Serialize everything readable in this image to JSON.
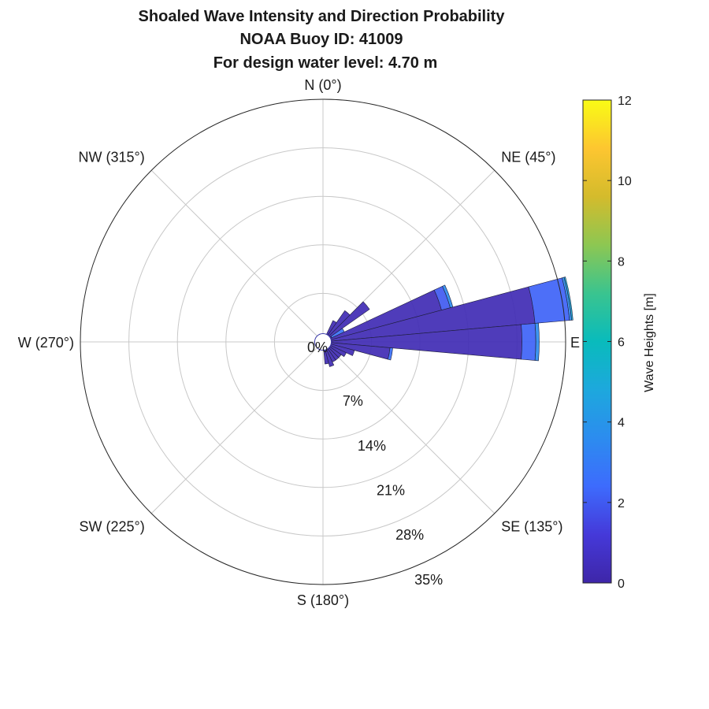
{
  "chart_data": {
    "type": "wind_rose",
    "title": [
      "Shoaled Wave Intensity and Direction Probability",
      "NOAA Buoy ID: 41009",
      "For design water level: 4.70 m"
    ],
    "direction_labels": [
      {
        "angle": 0,
        "text": "N (0°)"
      },
      {
        "angle": 45,
        "text": "NE (45°)"
      },
      {
        "angle": 90,
        "text": "E"
      },
      {
        "angle": 135,
        "text": "SE (135°)"
      },
      {
        "angle": 180,
        "text": "S (180°)"
      },
      {
        "angle": 225,
        "text": "SW (225°)"
      },
      {
        "angle": 270,
        "text": "W (270°)"
      },
      {
        "angle": 315,
        "text": "NW (315°)"
      }
    ],
    "radial_axis": {
      "max": 35,
      "rings": [
        7,
        14,
        21,
        28,
        35
      ],
      "labels": [
        "0%",
        "7%",
        "14%",
        "21%",
        "28%",
        "35%"
      ],
      "inner_hole_percent": 1.2
    },
    "bin_width_deg": 10,
    "bins": [
      {
        "direction": 60,
        "segments": [
          [
            0.3,
            0.2
          ],
          [
            2.7,
            2.0
          ]
        ]
      },
      {
        "direction": 70,
        "segments": [
          [
            0.3,
            16.5
          ],
          [
            2.0,
            1.3
          ],
          [
            3.6,
            0.4
          ]
        ]
      },
      {
        "direction": 80,
        "segments": [
          [
            0.3,
            29.5
          ],
          [
            2.2,
            5.0
          ],
          [
            3.6,
            0.3
          ],
          [
            5.0,
            0.2
          ]
        ]
      },
      {
        "direction": 90,
        "segments": [
          [
            0.3,
            27.5
          ],
          [
            2.2,
            2.0
          ],
          [
            3.6,
            0.5
          ]
        ]
      },
      {
        "direction": 100,
        "segments": [
          [
            0.3,
            8.5
          ],
          [
            2.6,
            0.4
          ]
        ]
      },
      {
        "direction": 50,
        "segments": [
          [
            0.3,
            7.0
          ]
        ]
      },
      {
        "direction": 40,
        "segments": [
          [
            0.3,
            4.3
          ]
        ]
      },
      {
        "direction": 30,
        "segments": [
          [
            0.3,
            2.2
          ]
        ]
      },
      {
        "direction": 110,
        "segments": [
          [
            0.3,
            3.5
          ]
        ]
      },
      {
        "direction": 120,
        "segments": [
          [
            0.3,
            2.5
          ]
        ]
      },
      {
        "direction": 130,
        "segments": [
          [
            0.3,
            2.0
          ]
        ]
      },
      {
        "direction": 140,
        "segments": [
          [
            0.3,
            2.0
          ]
        ]
      },
      {
        "direction": 150,
        "segments": [
          [
            0.3,
            2.0
          ]
        ]
      },
      {
        "direction": 160,
        "segments": [
          [
            0.3,
            2.5
          ]
        ]
      },
      {
        "direction": 170,
        "segments": [
          [
            0.3,
            2.0
          ]
        ]
      }
    ],
    "colorbar": {
      "label": "Wave Heights [m]",
      "min": 0,
      "max": 12,
      "ticks": [
        "0",
        "2",
        "4",
        "6",
        "8",
        "10",
        "12"
      ],
      "colormap": "parula"
    },
    "grid": true
  }
}
